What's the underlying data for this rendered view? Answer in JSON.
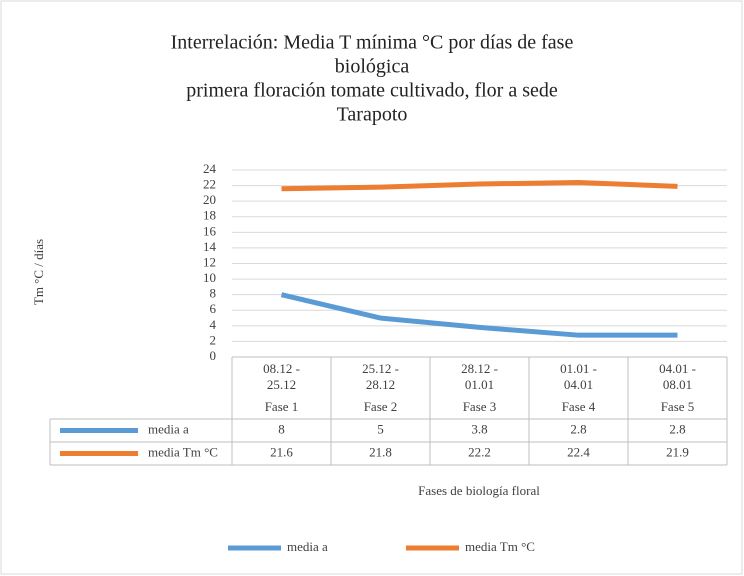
{
  "chart_data": {
    "type": "line",
    "title": [
      "Interrelación: Media T mínima °C por días de fase",
      "biológica",
      "primera floración tomate cultivado, flor a sede",
      "Tarapoto"
    ],
    "y_label": "Tm °C / días",
    "x_label": "Fases de biología floral",
    "categories": [
      [
        "08.12 -",
        "25.12"
      ],
      [
        "25.12 -",
        "28.12"
      ],
      [
        "28.12 -",
        "01.01"
      ],
      [
        "01.01 -",
        "04.01"
      ],
      [
        "04.01 -",
        "08.01"
      ]
    ],
    "category_groups": [
      "Fase 1",
      "Fase 2",
      "Fase 3",
      "Fase 4",
      "Fase 5"
    ],
    "series": [
      {
        "name": "media a",
        "color": "#5b9bd5",
        "values": [
          8,
          5,
          3.8,
          2.8,
          2.8
        ]
      },
      {
        "name": "media Tm °C",
        "color": "#ed7d31",
        "values": [
          21.6,
          21.8,
          22.2,
          22.4,
          21.9
        ]
      }
    ],
    "ylim": [
      0,
      24
    ],
    "yticks": [
      0,
      2,
      4,
      6,
      8,
      10,
      12,
      14,
      16,
      18,
      20,
      22,
      24
    ],
    "grid": true,
    "legend": "bottom",
    "data_table": true
  }
}
